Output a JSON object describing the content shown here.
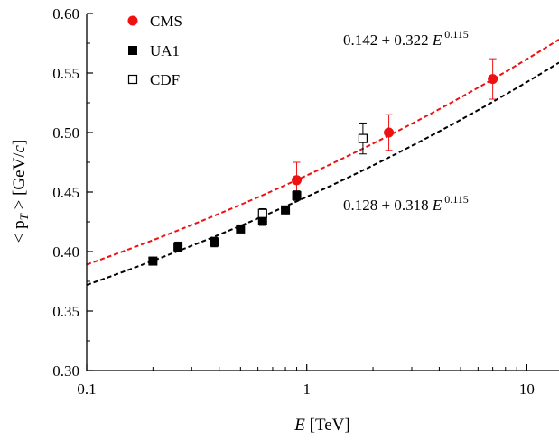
{
  "chart_data": {
    "type": "scatter",
    "xlabel_var": "E",
    "xlabel_unit": " [TeV]",
    "ylabel_pre": "< p",
    "ylabel_sub": "T",
    "ylabel_mid": " > [GeV/",
    "ylabel_c": "c",
    "ylabel_post": "]",
    "xscale": "log",
    "xlim": [
      0.1,
      14
    ],
    "ylim": [
      0.3,
      0.6
    ],
    "x_ticks": [
      0.1,
      1,
      10
    ],
    "x_tick_labels": [
      "0.1",
      "1",
      "10"
    ],
    "y_ticks": [
      0.3,
      0.35,
      0.4,
      0.45,
      0.5,
      0.55,
      0.6
    ],
    "y_tick_labels": [
      "0.30",
      "0.35",
      "0.40",
      "0.45",
      "0.50",
      "0.55",
      "0.60"
    ],
    "grid": false,
    "legend_position": "top-left",
    "series": [
      {
        "name": "CMS",
        "marker": "filled-circle",
        "color": "#ee1111",
        "x": [
          0.9,
          2.36,
          7.0
        ],
        "y": [
          0.46,
          0.5,
          0.545
        ],
        "y_err": [
          0.015,
          0.015,
          0.017
        ]
      },
      {
        "name": "UA1",
        "marker": "filled-square",
        "color": "#000000",
        "x": [
          0.2,
          0.26,
          0.38,
          0.5,
          0.63,
          0.8,
          0.9
        ],
        "y": [
          0.392,
          0.404,
          0.408,
          0.419,
          0.426,
          0.435,
          0.447
        ],
        "y_err": [
          0.003,
          0.004,
          0.004,
          0.003,
          0.004,
          0.003,
          0.004
        ]
      },
      {
        "name": "CDF",
        "marker": "open-square",
        "color": "#000000",
        "x": [
          0.63,
          1.8
        ],
        "y": [
          0.432,
          0.495
        ],
        "y_err": [
          0.004,
          0.013
        ]
      }
    ],
    "fits": [
      {
        "color": "#ee1111",
        "a": 0.142,
        "b": 0.322,
        "n": 0.115,
        "label_main": "0.142 + 0.322 ",
        "label_var": "E",
        "label_exp": "0.115"
      },
      {
        "color": "#000000",
        "a": 0.128,
        "b": 0.318,
        "n": 0.115,
        "label_main": "0.128 + 0.318 ",
        "label_var": "E",
        "label_exp": "0.115"
      }
    ]
  }
}
